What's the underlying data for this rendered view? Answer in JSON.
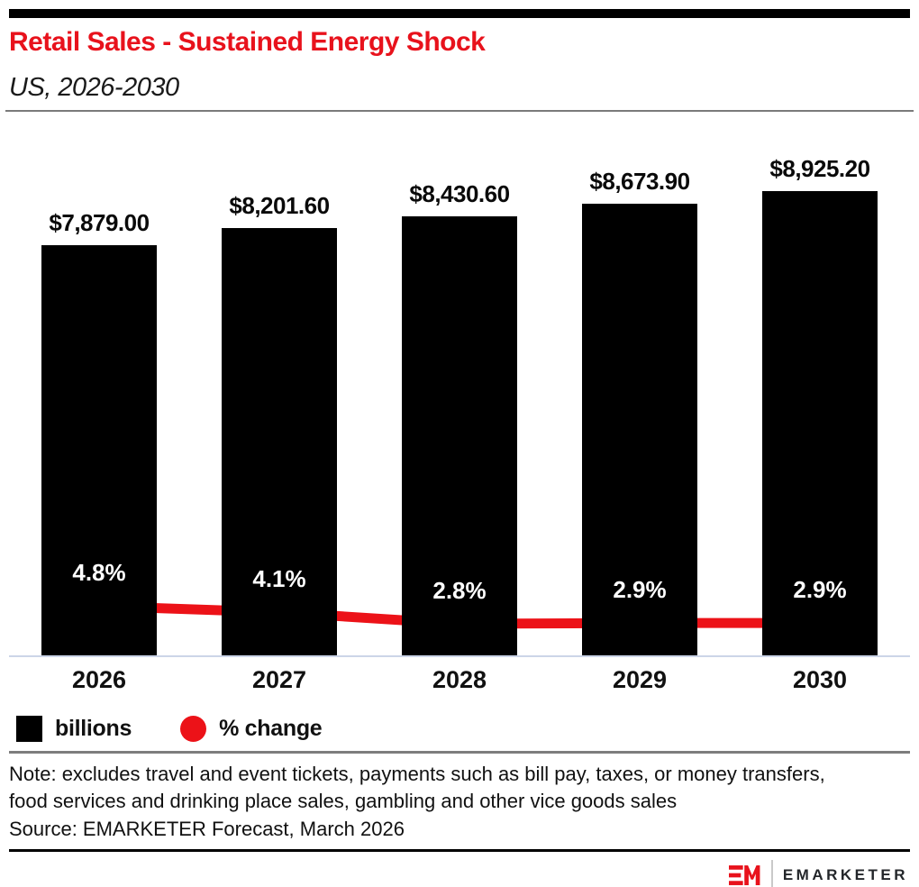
{
  "header": {
    "title": "Retail Sales - Sustained Energy Shock",
    "subtitle": "US, 2026-2030"
  },
  "chart_data": {
    "type": "bar",
    "title": "Retail Sales - Sustained Energy Shock",
    "subtitle": "US, 2026-2030",
    "categories": [
      "2026",
      "2027",
      "2028",
      "2029",
      "2030"
    ],
    "series": [
      {
        "name": "billions",
        "type": "bar",
        "values": [
          7879.0,
          8201.6,
          8430.6,
          8673.9,
          8925.2
        ],
        "labels": [
          "$7,879.00",
          "$8,201.60",
          "$8,430.60",
          "$8,673.90",
          "$8,925.20"
        ],
        "color": "#000000"
      },
      {
        "name": "% change",
        "type": "line",
        "values": [
          4.8,
          4.1,
          2.8,
          2.9,
          2.9
        ],
        "labels": [
          "4.8%",
          "4.1%",
          "2.8%",
          "2.9%",
          "2.9%"
        ],
        "color": "#ec1218"
      }
    ],
    "legend": [
      {
        "label": "billions",
        "swatch": "square",
        "color": "#000000"
      },
      {
        "label": "% change",
        "swatch": "circle",
        "color": "#ec1218"
      }
    ],
    "grid": false,
    "legend_position": "bottom-left",
    "accent_color": "#e8121c"
  },
  "note": "Note: excludes travel and event tickets, payments such as bill pay, taxes, or money transfers, food services and drinking place sales, gambling and other vice goods sales",
  "source": "Source: EMARKETER Forecast, March 2026",
  "footer": {
    "brand": "EMARKETER",
    "logo": "em-monogram-icon"
  }
}
